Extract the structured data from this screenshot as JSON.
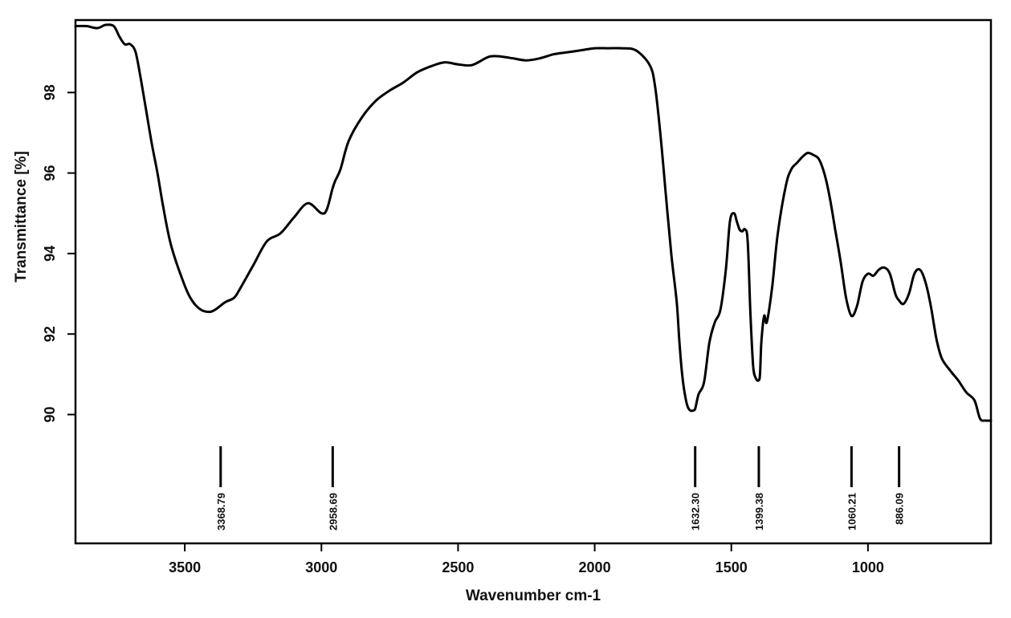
{
  "chart_data": {
    "type": "line",
    "title": "",
    "xlabel": "Wavenumber cm-1",
    "ylabel": "Transmittance [%]",
    "xlim": [
      3900,
      550
    ],
    "ylim": [
      86.8,
      99.8
    ],
    "x_reversed": true,
    "x_ticks": [
      3500,
      3000,
      2500,
      2000,
      1500,
      1000
    ],
    "y_ticks": [
      90,
      92,
      94,
      96,
      98
    ],
    "x_tick_labels": [
      "3500",
      "3000",
      "2500",
      "2000",
      "1500",
      "1000"
    ],
    "y_tick_labels": [
      "90",
      "92",
      "94",
      "96",
      "98"
    ],
    "grid": false,
    "legend": "none",
    "line_color": "#000000",
    "series": [
      {
        "x": [
          3900,
          3860,
          3820,
          3790,
          3760,
          3740,
          3720,
          3700,
          3680,
          3660,
          3640,
          3620,
          3600,
          3580,
          3550,
          3500,
          3470,
          3440,
          3410,
          3390,
          3370,
          3350,
          3320,
          3300,
          3250,
          3200,
          3150,
          3100,
          3050,
          3000,
          2980,
          2960,
          2950,
          2930,
          2900,
          2850,
          2800,
          2750,
          2700,
          2650,
          2600,
          2550,
          2500,
          2450,
          2400,
          2380,
          2350,
          2300,
          2250,
          2200,
          2150,
          2100,
          2050,
          2000,
          1950,
          1900,
          1850,
          1800,
          1780,
          1760,
          1740,
          1720,
          1700,
          1690,
          1680,
          1670,
          1660,
          1650,
          1640,
          1632,
          1620,
          1600,
          1580,
          1560,
          1540,
          1520,
          1505,
          1490,
          1480,
          1470,
          1460,
          1450,
          1440,
          1430,
          1420,
          1410,
          1400,
          1395,
          1390,
          1380,
          1370,
          1350,
          1330,
          1300,
          1280,
          1260,
          1240,
          1220,
          1200,
          1180,
          1160,
          1140,
          1120,
          1100,
          1080,
          1060,
          1040,
          1020,
          1000,
          980,
          960,
          940,
          920,
          900,
          888,
          870,
          850,
          830,
          810,
          790,
          770,
          750,
          730,
          700,
          670,
          640,
          610,
          590,
          570,
          550
        ],
        "y": [
          99.65,
          99.65,
          99.6,
          99.68,
          99.65,
          99.4,
          99.2,
          99.2,
          99.0,
          98.3,
          97.5,
          96.7,
          96.0,
          95.2,
          94.2,
          93.2,
          92.8,
          92.6,
          92.55,
          92.6,
          92.7,
          92.8,
          92.9,
          93.1,
          93.7,
          94.3,
          94.5,
          94.9,
          95.25,
          95.0,
          95.1,
          95.6,
          95.8,
          96.1,
          96.8,
          97.4,
          97.8,
          98.05,
          98.25,
          98.5,
          98.65,
          98.75,
          98.7,
          98.68,
          98.85,
          98.9,
          98.9,
          98.85,
          98.8,
          98.85,
          98.95,
          99.0,
          99.05,
          99.1,
          99.1,
          99.1,
          99.05,
          98.7,
          98.2,
          97.0,
          95.5,
          94.0,
          92.8,
          91.8,
          91.0,
          90.5,
          90.2,
          90.1,
          90.1,
          90.15,
          90.5,
          90.8,
          91.8,
          92.3,
          92.6,
          93.6,
          94.8,
          95.0,
          94.8,
          94.6,
          94.55,
          94.6,
          94.3,
          92.5,
          91.2,
          90.9,
          90.85,
          91.0,
          91.8,
          92.45,
          92.3,
          93.2,
          94.5,
          95.7,
          96.1,
          96.25,
          96.4,
          96.5,
          96.45,
          96.35,
          96.0,
          95.4,
          94.6,
          93.8,
          92.9,
          92.45,
          92.7,
          93.3,
          93.5,
          93.45,
          93.6,
          93.65,
          93.5,
          93.0,
          92.85,
          92.75,
          93.0,
          93.5,
          93.6,
          93.3,
          92.7,
          91.9,
          91.4,
          91.1,
          90.85,
          90.55,
          90.35,
          89.9,
          89.85,
          89.85
        ]
      }
    ],
    "peak_labels": [
      "3368.79",
      "2958.69",
      "1632.30",
      "1399.38",
      "1060.21",
      "886.09"
    ],
    "peak_positions": [
      3368.79,
      2958.69,
      1632.3,
      1399.38,
      1060.21,
      886.09
    ]
  }
}
